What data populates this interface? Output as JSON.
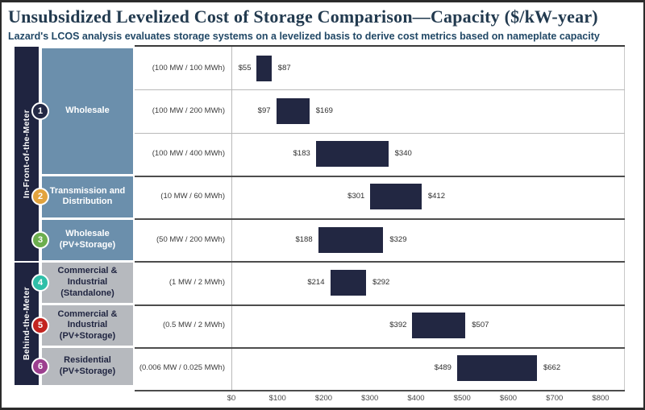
{
  "header": {
    "title": "Unsubsidized Levelized Cost of Storage Comparison—Capacity ($/kW-year)",
    "subtitle": "Lazard's LCOS analysis evaluates storage systems on a levelized basis to derive cost metrics based on nameplate capacity"
  },
  "colors": {
    "bar_fill": "#222742",
    "meter_strip": "#1f2440",
    "ifotm_box_bg": "#6b8fac",
    "ifotm_box_text": "#ffffff",
    "btm_box_bg": "#b6b9be",
    "btm_box_text": "#1f2440",
    "title_text": "#223a4f"
  },
  "groups": [
    {
      "label": "In-Front-of-the-Meter"
    },
    {
      "label": "Behind-the-Meter"
    }
  ],
  "categories": [
    {
      "number": "1",
      "circle_color": "#232844",
      "label": "Wholesale",
      "group": 0,
      "row_start": 0,
      "row_end": 2
    },
    {
      "number": "2",
      "circle_color": "#e2a33d",
      "label": "Transmission and Distribution",
      "group": 0,
      "row_start": 3,
      "row_end": 3
    },
    {
      "number": "3",
      "circle_color": "#6cae4e",
      "label": "Wholesale (PV+Storage)",
      "group": 0,
      "row_start": 4,
      "row_end": 4
    },
    {
      "number": "4",
      "circle_color": "#2fbfa8",
      "label": "Commercial & Industrial (Standalone)",
      "group": 1,
      "row_start": 5,
      "row_end": 5
    },
    {
      "number": "5",
      "circle_color": "#c32420",
      "label": "Commercial & Industrial (PV+Storage)",
      "group": 1,
      "row_start": 6,
      "row_end": 6
    },
    {
      "number": "6",
      "circle_color": "#9c3f8f",
      "label": "Residential (PV+Storage)",
      "group": 1,
      "row_start": 7,
      "row_end": 7
    }
  ],
  "chart_data": {
    "type": "bar",
    "subtype": "horizontal-range",
    "title": "Unsubsidized Levelized Cost of Storage Comparison—Capacity ($/kW-year)",
    "xlabel": "$/kW-year",
    "xlim": [
      0,
      800
    ],
    "x_ticks": [
      0,
      100,
      200,
      300,
      400,
      500,
      600,
      700,
      800
    ],
    "x_tick_labels": [
      "$0",
      "$100",
      "$200",
      "$300",
      "$400",
      "$500",
      "$600",
      "$700",
      "$800"
    ],
    "grid": false,
    "rows": [
      {
        "group": "In-Front-of-the-Meter",
        "category": "Wholesale",
        "capacity": "(100 MW / 100 MWh)",
        "low": 55,
        "high": 87,
        "low_label": "$55",
        "high_label": "$87"
      },
      {
        "group": "In-Front-of-the-Meter",
        "category": "Wholesale",
        "capacity": "(100 MW / 200 MWh)",
        "low": 97,
        "high": 169,
        "low_label": "$97",
        "high_label": "$169"
      },
      {
        "group": "In-Front-of-the-Meter",
        "category": "Wholesale",
        "capacity": "(100 MW / 400 MWh)",
        "low": 183,
        "high": 340,
        "low_label": "$183",
        "high_label": "$340"
      },
      {
        "group": "In-Front-of-the-Meter",
        "category": "Transmission and Distribution",
        "capacity": "(10 MW / 60 MWh)",
        "low": 301,
        "high": 412,
        "low_label": "$301",
        "high_label": "$412"
      },
      {
        "group": "In-Front-of-the-Meter",
        "category": "Wholesale (PV+Storage)",
        "capacity": "(50 MW / 200 MWh)",
        "low": 188,
        "high": 329,
        "low_label": "$188",
        "high_label": "$329"
      },
      {
        "group": "Behind-the-Meter",
        "category": "Commercial & Industrial (Standalone)",
        "capacity": "(1 MW / 2 MWh)",
        "low": 214,
        "high": 292,
        "low_label": "$214",
        "high_label": "$292"
      },
      {
        "group": "Behind-the-Meter",
        "category": "Commercial & Industrial (PV+Storage)",
        "capacity": "(0.5 MW / 2 MWh)",
        "low": 392,
        "high": 507,
        "low_label": "$392",
        "high_label": "$507"
      },
      {
        "group": "Behind-the-Meter",
        "category": "Residential (PV+Storage)",
        "capacity": "(0.006 MW / 0.025 MWh)",
        "low": 489,
        "high": 662,
        "low_label": "$489",
        "high_label": "$662"
      }
    ]
  }
}
